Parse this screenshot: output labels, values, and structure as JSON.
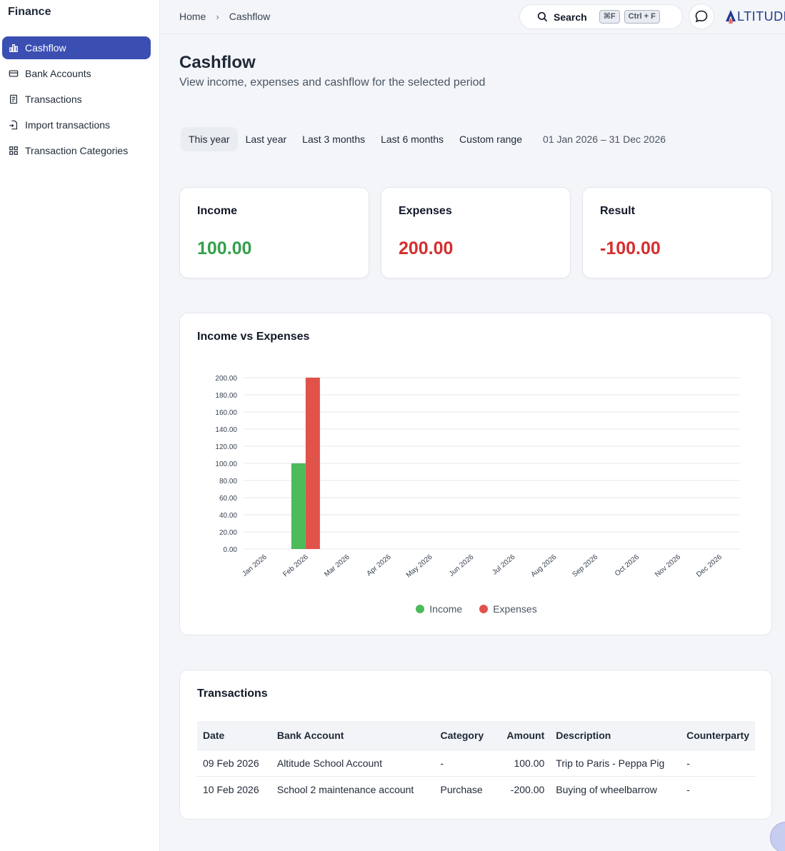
{
  "sidebar": {
    "brand": "Finance",
    "items": [
      {
        "label": "Cashflow",
        "icon": "bar-chart-icon",
        "active": true
      },
      {
        "label": "Bank Accounts",
        "icon": "credit-card-icon",
        "active": false
      },
      {
        "label": "Transactions",
        "icon": "receipt-icon",
        "active": false
      },
      {
        "label": "Import transactions",
        "icon": "file-import-icon",
        "active": false
      },
      {
        "label": "Transaction Categories",
        "icon": "grid-icon",
        "active": false
      }
    ]
  },
  "topbar": {
    "breadcrumb": [
      "Home",
      "Cashflow"
    ],
    "search_label": "Search",
    "shortcut_mac": "⌘F",
    "shortcut_win": "Ctrl + F",
    "logo_text": "LTITUDE"
  },
  "page": {
    "title": "Cashflow",
    "subtitle": "View income, expenses and cashflow for the selected period"
  },
  "periods": {
    "options": [
      "This year",
      "Last year",
      "Last 3 months",
      "Last 6 months",
      "Custom range"
    ],
    "selected": "This year",
    "range": "01 Jan 2026 – 31 Dec 2026"
  },
  "summary": {
    "income_label": "Income",
    "income_value": "100.00",
    "expenses_label": "Expenses",
    "expenses_value": "200.00",
    "result_label": "Result",
    "result_value": "-100.00"
  },
  "colors": {
    "accent": "#3b4fb3",
    "income": "#4cbb5a",
    "expenses": "#e0524a",
    "positive_text": "#33a14a",
    "negative_text": "#d62e2e"
  },
  "chart_data": {
    "type": "bar",
    "title": "Income vs Expenses",
    "categories": [
      "Jan 2026",
      "Feb 2026",
      "Mar 2026",
      "Apr 2026",
      "May 2026",
      "Jun 2026",
      "Jul 2026",
      "Aug 2026",
      "Sep 2026",
      "Oct 2026",
      "Nov 2026",
      "Dec 2026"
    ],
    "series": [
      {
        "name": "Income",
        "color": "#4cbb5a",
        "values": [
          0,
          100,
          0,
          0,
          0,
          0,
          0,
          0,
          0,
          0,
          0,
          0
        ]
      },
      {
        "name": "Expenses",
        "color": "#e0524a",
        "values": [
          0,
          200,
          0,
          0,
          0,
          0,
          0,
          0,
          0,
          0,
          0,
          0
        ]
      }
    ],
    "yticks": [
      "0.00",
      "20.00",
      "40.00",
      "60.00",
      "80.00",
      "100.00",
      "120.00",
      "140.00",
      "160.00",
      "180.00",
      "200.00"
    ],
    "ylim": [
      0,
      200
    ],
    "grid": true,
    "legend": "bottom-center"
  },
  "transactions": {
    "title": "Transactions",
    "columns": [
      "Date",
      "Bank Account",
      "Category",
      "Amount",
      "Description",
      "Counterparty"
    ],
    "rows": [
      {
        "date": "09 Feb 2026",
        "account": "Altitude School Account",
        "category": "-",
        "amount": "100.00",
        "description": "Trip to Paris - Peppa Pig",
        "counterparty": "-"
      },
      {
        "date": "10 Feb 2026",
        "account": "School 2 maintenance account",
        "category": "Purchase",
        "amount": "-200.00",
        "description": "Buying of wheelbarrow",
        "counterparty": "-"
      }
    ]
  }
}
